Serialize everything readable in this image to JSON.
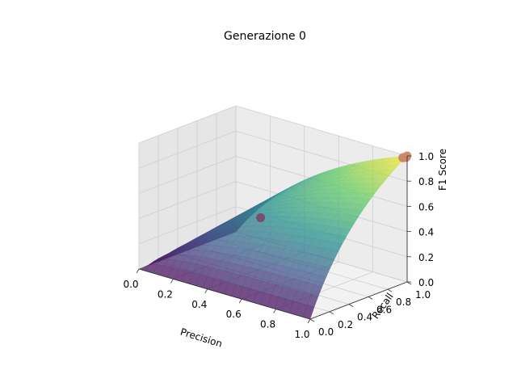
{
  "chart_data": {
    "type": "surface3d",
    "title": "Generazione 0",
    "xlabel": "Precision",
    "ylabel": "Recall",
    "zlabel": "F1 Score",
    "xlim": [
      0,
      1
    ],
    "ylim": [
      0,
      1
    ],
    "zlim": [
      0,
      1
    ],
    "x_ticks": [
      "0.0",
      "0.2",
      "0.4",
      "0.6",
      "0.8",
      "1.0"
    ],
    "y_ticks": [
      "0.0",
      "0.2",
      "0.4",
      "0.6",
      "0.8",
      "1.0"
    ],
    "z_ticks": [
      "0.0",
      "0.2",
      "0.4",
      "0.6",
      "0.8",
      "1.0"
    ],
    "surface": "F1 = 2*P*R/(P+R)",
    "colormap": "viridis",
    "grid": true,
    "points": [
      {
        "precision": 0.45,
        "recall": 0.46,
        "f1": 0.45,
        "color": "#7b4a6e"
      },
      {
        "precision": 0.99,
        "recall": 0.98,
        "f1": 0.99,
        "color": "#c98a6a"
      },
      {
        "precision": 1.0,
        "recall": 0.99,
        "f1": 0.99,
        "color": "#c98a6a"
      },
      {
        "precision": 0.98,
        "recall": 0.99,
        "f1": 0.98,
        "color": "#c98a6a"
      },
      {
        "precision": 1.0,
        "recall": 1.0,
        "f1": 1.0,
        "color": "#c98a6a"
      }
    ]
  }
}
